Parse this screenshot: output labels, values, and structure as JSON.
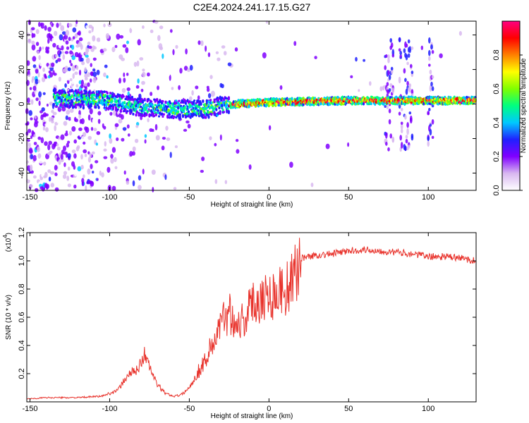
{
  "title": "C2E4.2024.241.17.15.G27",
  "chart_data": [
    {
      "type": "heatmap",
      "xlabel": "Height of straight line (km)",
      "ylabel": "Frequency (Hz)",
      "xlim": [
        -152,
        130
      ],
      "ylim": [
        -50,
        48
      ],
      "xticks": [
        -150,
        -100,
        -50,
        0,
        50,
        100
      ],
      "yticks": [
        -40,
        -20,
        0,
        20,
        40
      ],
      "colorbar": {
        "label": "Normalized spectral amplitude",
        "range": [
          0,
          1
        ],
        "ticks": [
          "0.0",
          "0.2",
          "0.4",
          "0.6",
          "0.8"
        ],
        "colors": [
          "#ffffff",
          "#d8b8f0",
          "#8000ff",
          "#2020ff",
          "#00c8ff",
          "#00ff80",
          "#80ff00",
          "#ffff00",
          "#ff8000",
          "#ff0000",
          "#ff0080"
        ]
      },
      "ridge": [
        {
          "x": -120,
          "freq": 3
        },
        {
          "x": -100,
          "freq": 2
        },
        {
          "x": -80,
          "freq": -2
        },
        {
          "x": -60,
          "freq": -3
        },
        {
          "x": -40,
          "freq": -3
        },
        {
          "x": -30,
          "freq": -1
        },
        {
          "x": -20,
          "freq": 0
        },
        {
          "x": 0,
          "freq": 1
        },
        {
          "x": 50,
          "freq": 2
        },
        {
          "x": 100,
          "freq": 2
        },
        {
          "x": 130,
          "freq": 2
        }
      ]
    },
    {
      "type": "line",
      "xlabel": "Height of straight line (km)",
      "ylabel": "SNR (10 * v/v)",
      "yscale_label": "(x10",
      "yscale_exp": "4",
      "xlim": [
        -152,
        130
      ],
      "ylim": [
        0,
        1.2
      ],
      "xticks": [
        -150,
        -100,
        -50,
        0,
        50,
        100
      ],
      "yticks": [
        "0.2",
        "0.4",
        "0.6",
        "0.8",
        "1.0",
        "1.2"
      ],
      "series": [
        {
          "color": "#e8322b",
          "x": [
            -152,
            -140,
            -120,
            -105,
            -95,
            -88,
            -83,
            -78,
            -74,
            -70,
            -65,
            -60,
            -55,
            -50,
            -45,
            -40,
            -35,
            -30,
            -25,
            -20,
            -15,
            -10,
            -5,
            0,
            5,
            10,
            15,
            18,
            20,
            25,
            30,
            40,
            50,
            60,
            70,
            80,
            90,
            100,
            110,
            120,
            130
          ],
          "values": [
            0.02,
            0.03,
            0.03,
            0.04,
            0.08,
            0.2,
            0.22,
            0.34,
            0.22,
            0.12,
            0.06,
            0.04,
            0.05,
            0.1,
            0.2,
            0.3,
            0.42,
            0.55,
            0.65,
            0.55,
            0.6,
            0.7,
            0.75,
            0.75,
            0.78,
            0.8,
            0.85,
            0.95,
            1.02,
            1.03,
            1.04,
            1.05,
            1.07,
            1.08,
            1.07,
            1.06,
            1.05,
            1.03,
            1.03,
            1.02,
            1.0
          ]
        }
      ]
    }
  ]
}
